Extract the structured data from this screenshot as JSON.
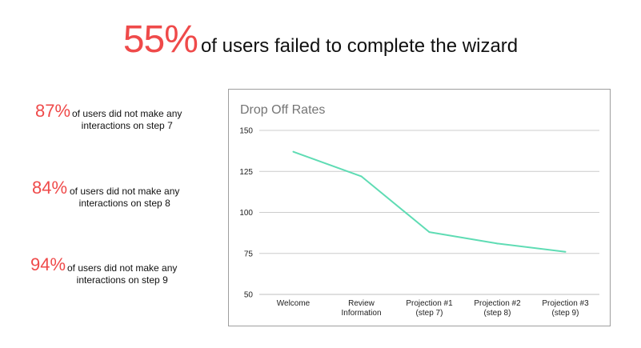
{
  "headline": {
    "percent": "55%",
    "text": "of users failed to complete the wizard"
  },
  "stats": [
    {
      "percent": "87%",
      "line1": "of users did not make any",
      "line2": "interactions on step 7"
    },
    {
      "percent": "84%",
      "line1": "of users did not make any",
      "line2": "interactions on step 8"
    },
    {
      "percent": "94%",
      "line1": "of users did not make any",
      "line2": "interactions on step 9"
    }
  ],
  "colors": {
    "accent": "#ef4a4a",
    "line": "#5fdcb4",
    "grid": "#cccccc"
  },
  "chart_data": {
    "type": "line",
    "title": "Drop Off Rates",
    "categories": [
      [
        "Welcome"
      ],
      [
        "Review",
        "Information"
      ],
      [
        "Projection #1",
        "(step 7)"
      ],
      [
        "Projection #2",
        "(step 8)"
      ],
      [
        "Projection #3",
        "(step 9)"
      ]
    ],
    "series": [
      {
        "values": [
          137,
          122,
          88,
          81,
          76
        ]
      }
    ],
    "ylim": [
      50,
      150
    ],
    "yticks": [
      50,
      75,
      100,
      125,
      150
    ],
    "xlabel": "",
    "ylabel": "",
    "grid": true,
    "legend": "none"
  }
}
